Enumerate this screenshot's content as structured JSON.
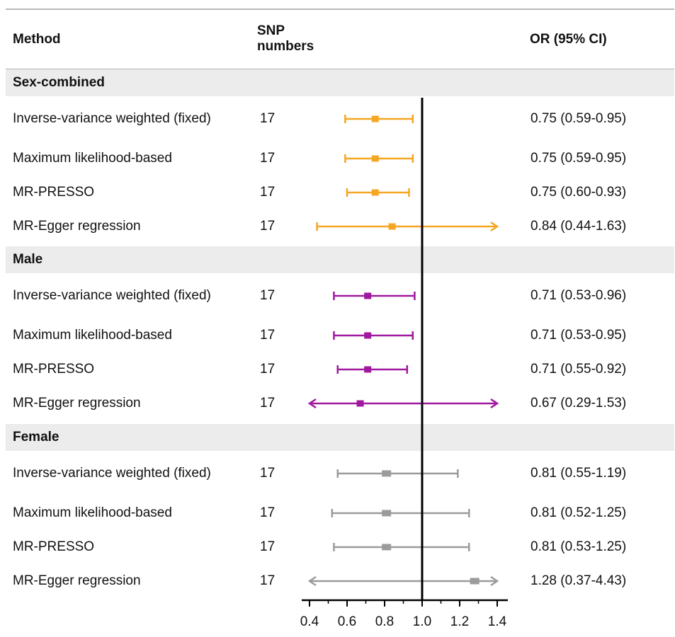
{
  "header": {
    "method": "Method",
    "snp_line1": "SNP",
    "snp_line2": "numbers",
    "or": "OR (95% CI)"
  },
  "chart_data": {
    "type": "forest",
    "reference_line": 1.0,
    "xlim": [
      0.4,
      1.4
    ],
    "ticks": [
      "0.4",
      "0.6",
      "0.8",
      "1.0",
      "1.2",
      "1.4"
    ],
    "tick_values": [
      0.4,
      0.6,
      0.8,
      1.0,
      1.2,
      1.4
    ],
    "groups": [
      {
        "name": "Sex-combined",
        "color": "#f5a623",
        "rows": [
          {
            "method": "Inverse-variance weighted (fixed)",
            "snp": "17",
            "or_text": "0.75 (0.59-0.95)",
            "est": 0.75,
            "lo": 0.59,
            "hi": 0.95
          },
          {
            "method": "Maximum likelihood-based",
            "snp": "17",
            "or_text": "0.75 (0.59-0.95)",
            "est": 0.75,
            "lo": 0.59,
            "hi": 0.95
          },
          {
            "method": "MR-PRESSO",
            "snp": "17",
            "or_text": "0.75 (0.60-0.93)",
            "est": 0.75,
            "lo": 0.6,
            "hi": 0.93
          },
          {
            "method": "MR-Egger regression",
            "snp": "17",
            "or_text": "0.84 (0.44-1.63)",
            "est": 0.84,
            "lo": 0.44,
            "hi": 1.63
          }
        ]
      },
      {
        "name": "Male",
        "color": "#a0189e",
        "rows": [
          {
            "method": "Inverse-variance weighted (fixed)",
            "snp": "17",
            "or_text": "0.71 (0.53-0.96)",
            "est": 0.71,
            "lo": 0.53,
            "hi": 0.96
          },
          {
            "method": "Maximum likelihood-based",
            "snp": "17",
            "or_text": "0.71 (0.53-0.95)",
            "est": 0.71,
            "lo": 0.53,
            "hi": 0.95
          },
          {
            "method": "MR-PRESSO",
            "snp": "17",
            "or_text": "0.71 (0.55-0.92)",
            "est": 0.71,
            "lo": 0.55,
            "hi": 0.92
          },
          {
            "method": "MR-Egger regression",
            "snp": "17",
            "or_text": "0.67 (0.29-1.53)",
            "est": 0.67,
            "lo": 0.29,
            "hi": 1.53
          }
        ]
      },
      {
        "name": "Female",
        "color": "#9b9b9b",
        "rows": [
          {
            "method": "Inverse-variance weighted (fixed)",
            "snp": "17",
            "or_text": "0.81 (0.55-1.19)",
            "est": 0.81,
            "lo": 0.55,
            "hi": 1.19
          },
          {
            "method": "Maximum likelihood-based",
            "snp": "17",
            "or_text": "0.81 (0.52-1.25)",
            "est": 0.81,
            "lo": 0.52,
            "hi": 1.25
          },
          {
            "method": "MR-PRESSO",
            "snp": "17",
            "or_text": "0.81 (0.53-1.25)",
            "est": 0.81,
            "lo": 0.53,
            "hi": 1.25
          },
          {
            "method": "MR-Egger regression",
            "snp": "17",
            "or_text": "1.28 (0.37-4.43)",
            "est": 1.28,
            "lo": 0.37,
            "hi": 4.43
          }
        ]
      }
    ]
  }
}
